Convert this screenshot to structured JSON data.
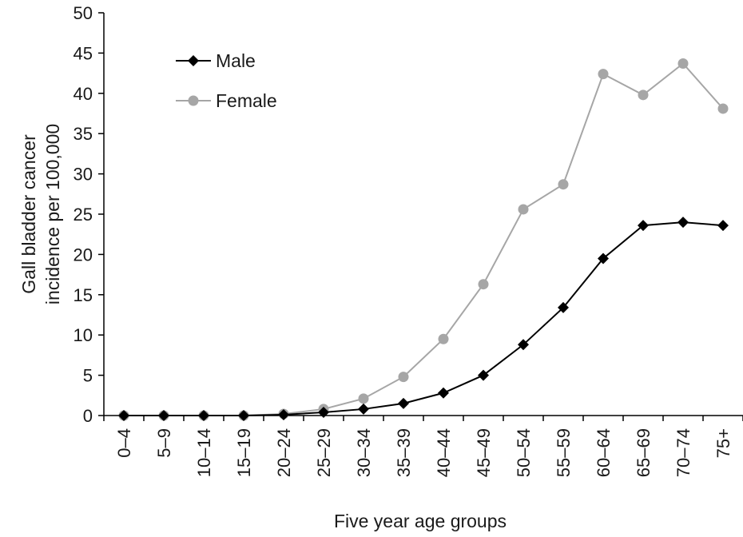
{
  "chart_data": {
    "type": "line",
    "title": "",
    "xlabel": "Five year age groups",
    "ylabel_lines": [
      "Gall bladder cancer",
      "incidence per 100,000"
    ],
    "ylim": [
      0,
      50
    ],
    "yticks": [
      0,
      5,
      10,
      15,
      20,
      25,
      30,
      35,
      40,
      45,
      50
    ],
    "grid": false,
    "legend_position": "top-left",
    "categories": [
      "0–4",
      "5–9",
      "10–14",
      "15–19",
      "20–24",
      "25–29",
      "30–34",
      "35–39",
      "40–44",
      "45–49",
      "50–54",
      "55–59",
      "60–64",
      "65–69",
      "70–74",
      "75+"
    ],
    "series": [
      {
        "name": "Male",
        "color": "#000000",
        "marker": "diamond",
        "values": [
          0,
          0,
          0,
          0,
          0.1,
          0.4,
          0.8,
          1.5,
          2.8,
          5.0,
          8.8,
          13.4,
          19.5,
          23.6,
          24.0,
          23.6
        ]
      },
      {
        "name": "Female",
        "color": "#a6a6a6",
        "marker": "circle",
        "values": [
          0,
          0,
          0,
          0,
          0.2,
          0.8,
          2.1,
          4.8,
          9.5,
          16.3,
          25.6,
          28.7,
          42.4,
          39.8,
          43.7,
          38.1
        ]
      }
    ]
  }
}
